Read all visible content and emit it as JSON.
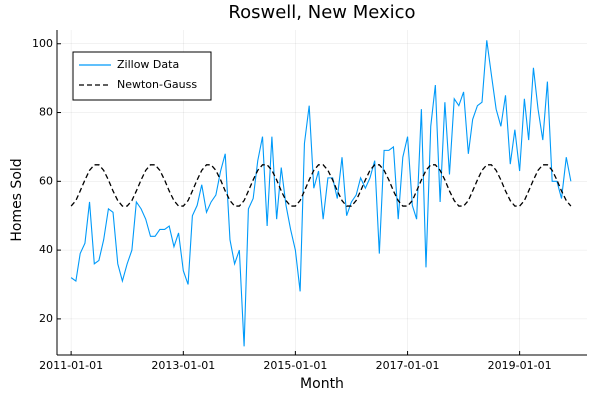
{
  "chart_data": {
    "type": "line",
    "title": "Roswell, New Mexico",
    "x_label": "Month",
    "y_label": "Homes Sold",
    "x": [
      "2011-01-01",
      "2011-02-01",
      "2011-03-01",
      "2011-04-01",
      "2011-05-01",
      "2011-06-01",
      "2011-07-01",
      "2011-08-01",
      "2011-09-01",
      "2011-10-01",
      "2011-11-01",
      "2011-12-01",
      "2012-01-01",
      "2012-02-01",
      "2012-03-01",
      "2012-04-01",
      "2012-05-01",
      "2012-06-01",
      "2012-07-01",
      "2012-08-01",
      "2012-09-01",
      "2012-10-01",
      "2012-11-01",
      "2012-12-01",
      "2013-01-01",
      "2013-02-01",
      "2013-03-01",
      "2013-04-01",
      "2013-05-01",
      "2013-06-01",
      "2013-07-01",
      "2013-08-01",
      "2013-09-01",
      "2013-10-01",
      "2013-11-01",
      "2013-12-01",
      "2014-01-01",
      "2014-02-01",
      "2014-03-01",
      "2014-04-01",
      "2014-05-01",
      "2014-06-01",
      "2014-07-01",
      "2014-08-01",
      "2014-09-01",
      "2014-10-01",
      "2014-11-01",
      "2014-12-01",
      "2015-01-01",
      "2015-02-01",
      "2015-03-01",
      "2015-04-01",
      "2015-05-01",
      "2015-06-01",
      "2015-07-01",
      "2015-08-01",
      "2015-09-01",
      "2015-10-01",
      "2015-11-01",
      "2015-12-01",
      "2016-01-01",
      "2016-02-01",
      "2016-03-01",
      "2016-04-01",
      "2016-05-01",
      "2016-06-01",
      "2016-07-01",
      "2016-08-01",
      "2016-09-01",
      "2016-10-01",
      "2016-11-01",
      "2016-12-01",
      "2017-01-01",
      "2017-02-01",
      "2017-03-01",
      "2017-04-01",
      "2017-05-01",
      "2017-06-01",
      "2017-07-01",
      "2017-08-01",
      "2017-09-01",
      "2017-10-01",
      "2017-11-01",
      "2017-12-01",
      "2018-01-01",
      "2018-02-01",
      "2018-03-01",
      "2018-04-01",
      "2018-05-01",
      "2018-06-01",
      "2018-07-01",
      "2018-08-01",
      "2018-09-01",
      "2018-10-01",
      "2018-11-01",
      "2018-12-01",
      "2019-01-01",
      "2019-02-01",
      "2019-03-01",
      "2019-04-01",
      "2019-05-01",
      "2019-06-01",
      "2019-07-01",
      "2019-08-01",
      "2019-09-01",
      "2019-10-01",
      "2019-11-01",
      "2019-12-01"
    ],
    "series": [
      {
        "name": "Zillow Data",
        "color": "#009af9",
        "dash": false,
        "values": [
          32,
          31,
          39,
          42,
          54,
          36,
          37,
          43,
          52,
          51,
          36,
          31,
          36,
          40,
          54,
          52,
          49,
          44,
          44,
          46,
          46,
          47,
          41,
          45,
          34,
          30,
          50,
          53,
          59,
          51,
          54,
          56,
          63,
          68,
          43,
          36,
          40,
          12,
          52,
          55,
          66,
          73,
          47,
          73,
          49,
          64,
          53,
          46,
          40,
          28,
          71,
          82,
          58,
          63,
          49,
          61,
          61,
          55,
          67,
          50,
          54,
          56,
          61,
          58,
          61,
          66,
          39,
          69,
          69,
          70,
          49,
          67,
          73,
          53,
          49,
          81,
          35,
          76,
          88,
          54,
          83,
          62,
          84,
          82,
          86,
          68,
          78,
          82,
          83,
          101,
          91,
          81,
          76,
          85,
          65,
          75,
          63,
          84,
          72,
          93,
          81,
          72,
          89,
          60,
          60,
          55,
          67,
          60
        ]
      },
      {
        "name": "Newton-Gauss",
        "color": "#000000",
        "dash": true,
        "values": [
          52.8,
          54.4,
          57.2,
          60.4,
          63.2,
          64.8,
          64.8,
          63.2,
          60.4,
          57.2,
          54.4,
          52.8,
          52.8,
          54.4,
          57.2,
          60.4,
          63.2,
          64.8,
          64.8,
          63.2,
          60.4,
          57.2,
          54.4,
          52.8,
          52.8,
          54.4,
          57.2,
          60.4,
          63.2,
          64.8,
          64.8,
          63.2,
          60.4,
          57.2,
          54.4,
          52.8,
          52.8,
          54.4,
          57.2,
          60.4,
          63.2,
          64.8,
          64.8,
          63.2,
          60.4,
          57.2,
          54.4,
          52.8,
          52.8,
          54.4,
          57.2,
          60.4,
          63.2,
          64.8,
          64.8,
          63.2,
          60.4,
          57.2,
          54.4,
          52.8,
          52.8,
          54.4,
          57.2,
          60.4,
          63.2,
          64.8,
          64.8,
          63.2,
          60.4,
          57.2,
          54.4,
          52.8,
          52.8,
          54.4,
          57.2,
          60.4,
          63.2,
          64.8,
          64.8,
          63.2,
          60.4,
          57.2,
          54.4,
          52.8,
          52.8,
          54.4,
          57.2,
          60.4,
          63.2,
          64.8,
          64.8,
          63.2,
          60.4,
          57.2,
          54.4,
          52.8,
          52.8,
          54.4,
          57.2,
          60.4,
          63.2,
          64.8,
          64.8,
          63.2,
          60.4,
          57.2,
          54.4,
          52.8
        ]
      }
    ],
    "xlim": [
      "2010-10-01",
      "2020-03-15"
    ],
    "xticks": [
      "2011-01-01",
      "2013-01-01",
      "2015-01-01",
      "2017-01-01",
      "2019-01-01"
    ],
    "ylim": [
      9.5,
      104
    ],
    "yticks": [
      20,
      40,
      60,
      80,
      100
    ],
    "grid": true,
    "legend_position": "top-left"
  }
}
